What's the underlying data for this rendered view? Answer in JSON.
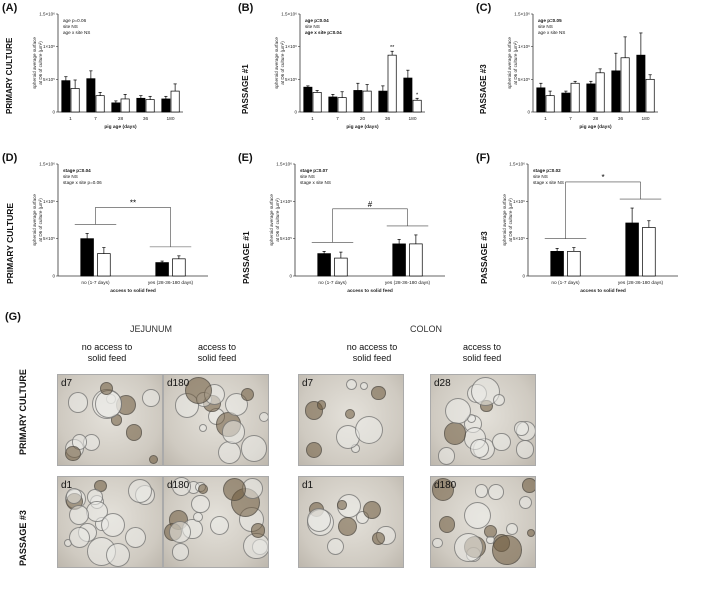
{
  "chart_data": [
    {
      "id": "A",
      "letter": "(A)",
      "type": "bar",
      "row_title": "PRIMARY CULTURE",
      "ylabel": [
        "spheroid average surface",
        "at D6 of culture (µm²)"
      ],
      "xlabel": "pig age (days)",
      "yticks": [
        "0",
        "5×10⁵",
        "1×10⁶",
        "1.5×10⁶"
      ],
      "ymax": 1.5,
      "stats": [
        {
          "text": "age p=0.06",
          "bold": false
        },
        {
          "text": "site NS",
          "bold": false
        },
        {
          "text": "age x site NS",
          "bold": false
        }
      ],
      "categories": [
        "1",
        "7",
        "28",
        "36",
        "180"
      ],
      "series": [
        {
          "values": [
            0.48,
            0.51,
            0.14,
            0.21,
            0.2
          ],
          "errors": [
            0.06,
            0.12,
            0.03,
            0.04,
            0.04
          ]
        },
        {
          "values": [
            0.36,
            0.25,
            0.2,
            0.19,
            0.32
          ],
          "errors": [
            0.13,
            0.05,
            0.07,
            0.05,
            0.11
          ]
        }
      ],
      "annotations": []
    },
    {
      "id": "B",
      "letter": "(B)",
      "type": "bar",
      "row_title": "PASSAGE #1",
      "ylabel": [
        "spheroid average surface",
        "at D6 of culture (µm²)"
      ],
      "xlabel": "pig age (days)",
      "yticks": [
        "0",
        "5×10⁵",
        "1×10⁶",
        "1.5×10⁶"
      ],
      "ymax": 1.5,
      "stats": [
        {
          "text": "age p=0.04",
          "bold": true
        },
        {
          "text": "site NS",
          "bold": false
        },
        {
          "text": "age x site p=0.04",
          "bold": true
        }
      ],
      "categories": [
        "1",
        "7",
        "20",
        "36",
        "180"
      ],
      "series": [
        {
          "values": [
            0.38,
            0.23,
            0.33,
            0.32,
            0.52
          ],
          "errors": [
            0.02,
            0.04,
            0.11,
            0.08,
            0.12
          ]
        },
        {
          "values": [
            0.3,
            0.22,
            0.32,
            0.87,
            0.18
          ],
          "errors": [
            0.03,
            0.09,
            0.1,
            0.06,
            0.03
          ]
        }
      ],
      "annotations": [
        {
          "index": 3,
          "text": "**"
        },
        {
          "index": 4,
          "text": "*"
        }
      ]
    },
    {
      "id": "C",
      "letter": "(C)",
      "type": "bar",
      "row_title": "PASSAGE #3",
      "ylabel": [
        "spheroid average surface",
        "at D6 of culture (µm²)"
      ],
      "xlabel": "pig age (days)",
      "yticks": [
        "0",
        "5×10⁵",
        "1×10⁶",
        "1.5×10⁶"
      ],
      "ymax": 1.5,
      "stats": [
        {
          "text": "age p=0.05",
          "bold": true
        },
        {
          "text": "site NS",
          "bold": false
        },
        {
          "text": "age x site NS",
          "bold": false
        }
      ],
      "categories": [
        "1",
        "7",
        "28",
        "36",
        "180"
      ],
      "series": [
        {
          "values": [
            0.37,
            0.29,
            0.43,
            0.63,
            0.87
          ],
          "errors": [
            0.07,
            0.03,
            0.04,
            0.27,
            0.34
          ]
        },
        {
          "values": [
            0.25,
            0.44,
            0.6,
            0.83,
            0.5
          ],
          "errors": [
            0.07,
            0.03,
            0.06,
            0.32,
            0.07
          ]
        }
      ],
      "annotations": []
    },
    {
      "id": "D",
      "letter": "(D)",
      "type": "bar",
      "row_title": "PRIMARY CULTURE",
      "ylabel": [
        "spheroid average surface",
        "at D6 of culture (µm²)"
      ],
      "xlabel": "access to solid feed",
      "yticks": [
        "0",
        "5×10⁵",
        "1×10⁶",
        "1.5×10⁶"
      ],
      "ymax": 1.5,
      "stats": [
        {
          "text": "stage p=0.04",
          "bold": true
        },
        {
          "text": "site NS",
          "bold": false
        },
        {
          "text": "stage x site p=0.06",
          "bold": false
        }
      ],
      "categories": [
        "no (1-7 days)",
        "yes (28-36-180 days)"
      ],
      "series": [
        {
          "values": [
            0.5,
            0.18
          ],
          "errors": [
            0.07,
            0.02
          ]
        },
        {
          "values": [
            0.3,
            0.23
          ],
          "errors": [
            0.08,
            0.04
          ]
        }
      ],
      "bracket": "**"
    },
    {
      "id": "E",
      "letter": "(E)",
      "type": "bar",
      "row_title": "PASSAGE #1",
      "ylabel": [
        "spheroid average surface",
        "at D6 of culture (µm²)"
      ],
      "xlabel": "access to solid feed",
      "yticks": [
        "0",
        "5×10⁵",
        "1×10⁶",
        "1.5×10⁶"
      ],
      "ymax": 1.5,
      "stats": [
        {
          "text": "stage p=0.07",
          "bold": true
        },
        {
          "text": "site NS",
          "bold": false
        },
        {
          "text": "stage x site NS",
          "bold": false
        }
      ],
      "categories": [
        "no (1-7 days)",
        "yes (28-36-180 days)"
      ],
      "series": [
        {
          "values": [
            0.3,
            0.43
          ],
          "errors": [
            0.03,
            0.06
          ]
        },
        {
          "values": [
            0.24,
            0.43
          ],
          "errors": [
            0.08,
            0.12
          ]
        }
      ],
      "bracket": "#"
    },
    {
      "id": "F",
      "letter": "(F)",
      "type": "bar",
      "row_title": "PASSAGE #3",
      "ylabel": [
        "spheroid average surface",
        "at D6 of culture (µm²)"
      ],
      "xlabel": "access to solid feed",
      "yticks": [
        "0",
        "5×10⁵",
        "1×10⁶",
        "1.5×10⁶"
      ],
      "ymax": 1.5,
      "stats": [
        {
          "text": "stage p=0.02",
          "bold": true
        },
        {
          "text": "site NS",
          "bold": false
        },
        {
          "text": "stage x site NS",
          "bold": false
        }
      ],
      "categories": [
        "no (1-7 days)",
        "yes (28-36-180 days)"
      ],
      "series": [
        {
          "values": [
            0.33,
            0.71
          ],
          "errors": [
            0.04,
            0.2
          ]
        },
        {
          "values": [
            0.33,
            0.65
          ],
          "errors": [
            0.05,
            0.09
          ]
        }
      ],
      "bracket": "*"
    }
  ],
  "panel_g": {
    "letter": "(G)",
    "groups": [
      "JEJUNUM",
      "COLON"
    ],
    "columns": [
      "no access to\nsolid feed",
      "access to\nsolid feed",
      "no access to\nsolid feed",
      "access to\nsolid feed"
    ],
    "rows": [
      "PRIMARY CULTURE",
      "PASSAGE #3"
    ],
    "tags": [
      [
        "d7",
        "d180",
        "d7",
        "d28"
      ],
      [
        "d1",
        "d180",
        "d1",
        "d180"
      ]
    ]
  },
  "colors": {
    "filled": "#000000",
    "empty": "#ffffff",
    "axis": "#333333",
    "micro_bg": "#d8d4cc"
  }
}
